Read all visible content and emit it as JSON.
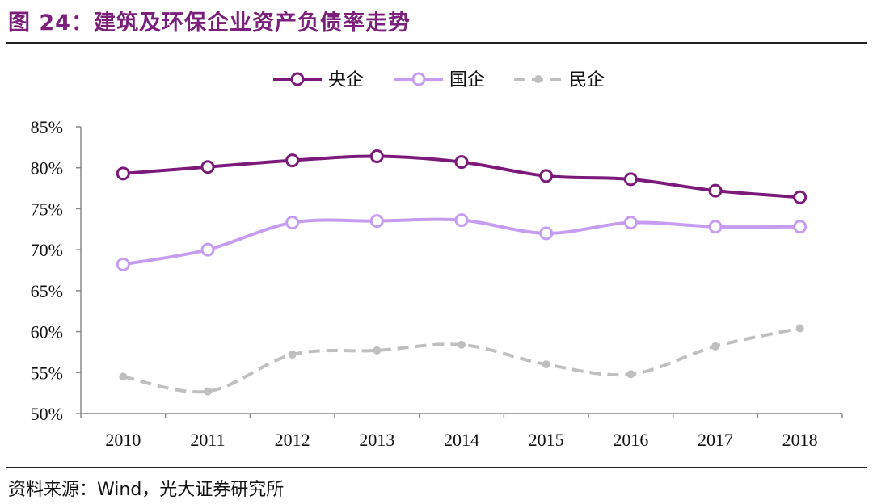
{
  "title": "图 24：建筑及环保企业资产负债率走势",
  "source": "资料来源：Wind，光大证券研究所",
  "chart_data": {
    "type": "line",
    "title": "建筑及环保企业资产负债率走势",
    "xlabel": "",
    "ylabel": "",
    "categories": [
      "2010",
      "2011",
      "2012",
      "2013",
      "2014",
      "2015",
      "2016",
      "2017",
      "2018"
    ],
    "ylim": [
      50,
      85
    ],
    "yticks": [
      "50%",
      "55%",
      "60%",
      "65%",
      "70%",
      "75%",
      "80%",
      "85%"
    ],
    "grid": false,
    "legend_position": "top-center",
    "series": [
      {
        "name": "央企",
        "color": "#7b1a7b",
        "marker": "hollow-circle",
        "values": [
          79.3,
          80.1,
          80.9,
          81.4,
          80.7,
          79.0,
          78.6,
          77.2,
          76.4
        ]
      },
      {
        "name": "国企",
        "color": "#c59cf2",
        "marker": "hollow-circle",
        "values": [
          68.2,
          70.0,
          73.3,
          73.5,
          73.6,
          72.0,
          73.3,
          72.8,
          72.8
        ]
      },
      {
        "name": "民企",
        "color": "#bfbfbf",
        "marker": "dot",
        "dashed": true,
        "values": [
          54.5,
          52.7,
          57.2,
          57.7,
          58.4,
          56.0,
          54.8,
          58.2,
          60.4
        ]
      }
    ]
  }
}
